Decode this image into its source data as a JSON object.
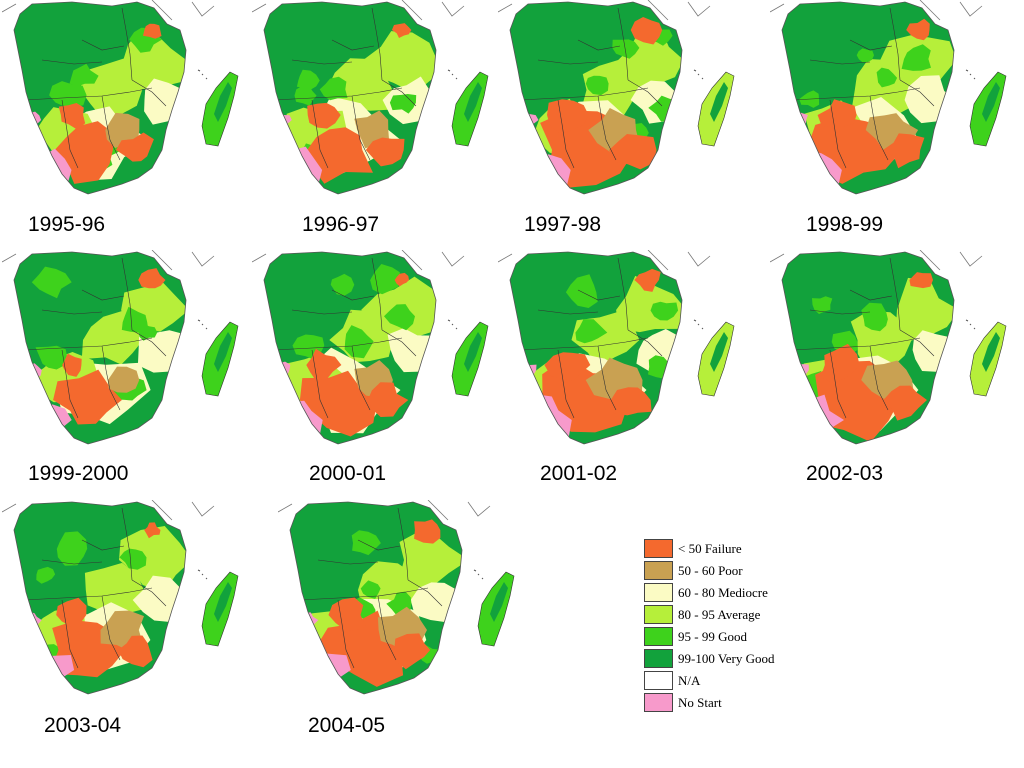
{
  "panels": [
    {
      "label": "1995-96",
      "severity": 0.55
    },
    {
      "label": "1996-97",
      "severity": 0.6
    },
    {
      "label": "1997-98",
      "severity": 0.85
    },
    {
      "label": "1998-99",
      "severity": 0.75
    },
    {
      "label": "1999-2000",
      "severity": 0.35
    },
    {
      "label": "2000-01",
      "severity": 0.6
    },
    {
      "label": "2001-02",
      "severity": 0.9
    },
    {
      "label": "2002-03",
      "severity": 0.9
    },
    {
      "label": "2003-04",
      "severity": 0.7
    },
    {
      "label": "2004-05",
      "severity": 0.75
    }
  ],
  "legend": [
    {
      "label": "< 50 Failure",
      "color": "#f4692e"
    },
    {
      "label": "50 - 60 Poor",
      "color": "#c9a152"
    },
    {
      "label": "60 - 80 Mediocre",
      "color": "#fbfbc4"
    },
    {
      "label": "80 - 95 Average",
      "color": "#b6ef3a"
    },
    {
      "label": "95 - 99 Good",
      "color": "#3ed21c"
    },
    {
      "label": "99-100  Very Good",
      "color": "#12a23c"
    },
    {
      "label": "N/A",
      "color": "#ffffff"
    },
    {
      "label": "No Start",
      "color": "#f79acb"
    }
  ]
}
